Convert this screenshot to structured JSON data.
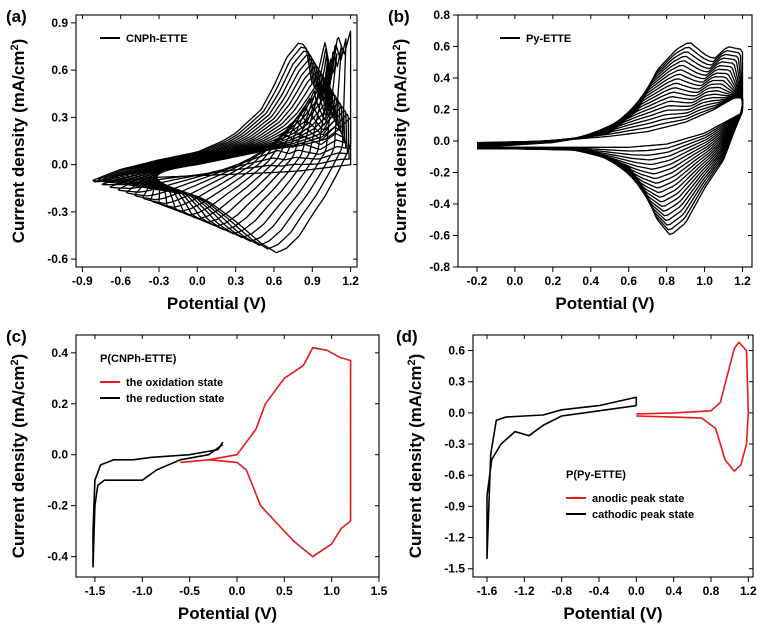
{
  "chart_data": [
    {
      "panel": "(a)",
      "type": "line",
      "xlabel": "Potential (V)",
      "ylabel": "Current density (mA/cm",
      "ylabel_sup": "2",
      "ylabel_end": ")",
      "xlim": [
        -0.95,
        1.25
      ],
      "ylim": [
        -0.65,
        0.95
      ],
      "xticks": [
        -0.9,
        -0.6,
        -0.3,
        0.0,
        0.3,
        0.6,
        0.9,
        1.2
      ],
      "yticks": [
        -0.6,
        -0.3,
        0.0,
        0.3,
        0.6,
        0.9
      ],
      "xtick_labels": [
        "-0.9",
        "-0.6",
        "-0.3",
        "0.0",
        "0.3",
        "0.6",
        "0.9",
        "1.2"
      ],
      "ytick_labels": [
        "-0.6",
        "-0.3",
        "0.0",
        "0.3",
        "0.6",
        "0.9"
      ],
      "legend": [
        {
          "name": "CNPh-ETTE",
          "color": "#000000"
        }
      ],
      "legend_position": "top-left",
      "cycles": 20,
      "series": [
        {
          "name": "CNPh-ETTE",
          "color": "#000000",
          "cycle": "first",
          "x": [
            0.0,
            0.3,
            0.6,
            0.8,
            1.0,
            1.1,
            1.2,
            1.2,
            1.0,
            0.8,
            0.6,
            0.3,
            0.0,
            -0.3,
            -0.6,
            -0.82,
            -0.6,
            -0.3,
            0.0
          ],
          "y": [
            0.0,
            0.05,
            0.1,
            0.12,
            0.16,
            0.22,
            0.3,
            0.0,
            -0.02,
            -0.04,
            -0.05,
            -0.06,
            -0.07,
            -0.08,
            -0.1,
            -0.11,
            -0.07,
            -0.03,
            0.0
          ]
        },
        {
          "name": "CNPh-ETTE",
          "color": "#000000",
          "cycle": "last",
          "x": [
            -0.82,
            -0.6,
            -0.3,
            0.0,
            0.2,
            0.3,
            0.5,
            0.6,
            0.7,
            0.8,
            0.85,
            0.9,
            0.95,
            1.0,
            1.05,
            1.1,
            1.15,
            1.2,
            1.2,
            1.1,
            1.0,
            0.9,
            0.8,
            0.7,
            0.62,
            0.5,
            0.3,
            0.2,
            0.1,
            0.0,
            -0.3,
            -0.6,
            -0.82
          ],
          "y": [
            -0.1,
            -0.03,
            0.03,
            0.08,
            0.15,
            0.2,
            0.35,
            0.5,
            0.68,
            0.78,
            0.75,
            0.5,
            0.6,
            0.78,
            0.55,
            0.82,
            0.7,
            0.85,
            0.12,
            -0.05,
            -0.2,
            -0.32,
            -0.45,
            -0.53,
            -0.56,
            -0.5,
            -0.36,
            -0.3,
            -0.24,
            -0.2,
            -0.16,
            -0.12,
            -0.1
          ]
        }
      ]
    },
    {
      "panel": "(b)",
      "type": "line",
      "xlabel": "Potential (V)",
      "ylabel": "Current density (mA/cm",
      "ylabel_sup": "2",
      "ylabel_end": ")",
      "xlim": [
        -0.3,
        1.25
      ],
      "ylim": [
        -0.8,
        0.8
      ],
      "xticks": [
        -0.2,
        0.0,
        0.2,
        0.4,
        0.6,
        0.8,
        1.0,
        1.2
      ],
      "yticks": [
        -0.8,
        -0.6,
        -0.4,
        -0.2,
        0.0,
        0.2,
        0.4,
        0.6,
        0.8
      ],
      "xtick_labels": [
        "-0.2",
        "0.0",
        "0.2",
        "0.4",
        "0.6",
        "0.8",
        "1.0",
        "1.2"
      ],
      "ytick_labels": [
        "-0.8",
        "-0.6",
        "-0.4",
        "-0.2",
        "0.0",
        "0.2",
        "0.4",
        "0.6",
        "0.8"
      ],
      "legend": [
        {
          "name": "Py-ETTE",
          "color": "#000000"
        }
      ],
      "legend_position": "top-left",
      "cycles": 20,
      "series": [
        {
          "name": "Py-ETTE",
          "color": "#000000",
          "cycle": "first",
          "x": [
            -0.2,
            0.2,
            0.5,
            0.7,
            0.9,
            1.05,
            1.15,
            1.2,
            1.2,
            1.0,
            0.8,
            0.6,
            0.4,
            0.0,
            -0.2
          ],
          "y": [
            -0.01,
            0.0,
            0.03,
            0.06,
            0.12,
            0.2,
            0.27,
            0.28,
            0.18,
            0.05,
            -0.02,
            -0.04,
            -0.04,
            -0.04,
            -0.04
          ]
        },
        {
          "name": "Py-ETTE",
          "color": "#000000",
          "cycle": "last",
          "x": [
            -0.2,
            0.2,
            0.5,
            0.65,
            0.75,
            0.85,
            0.92,
            1.0,
            1.05,
            1.12,
            1.2,
            1.2,
            1.1,
            1.0,
            0.9,
            0.82,
            0.75,
            0.68,
            0.6,
            0.4,
            0.0,
            -0.2
          ],
          "y": [
            -0.04,
            -0.01,
            0.05,
            0.2,
            0.45,
            0.58,
            0.63,
            0.55,
            0.52,
            0.6,
            0.58,
            0.2,
            -0.12,
            -0.3,
            -0.52,
            -0.6,
            -0.5,
            -0.3,
            -0.16,
            -0.06,
            -0.05,
            -0.05
          ]
        }
      ]
    },
    {
      "panel": "(c)",
      "type": "line",
      "title": "P(CNPh-ETTE)",
      "xlabel": "Potential (V)",
      "ylabel": "Current density (mA/cm",
      "ylabel_sup": "2",
      "ylabel_end": ")",
      "xlim": [
        -1.7,
        1.5
      ],
      "ylim": [
        -0.48,
        0.47
      ],
      "xticks": [
        -1.5,
        -1.0,
        -0.5,
        0.0,
        0.5,
        1.0,
        1.5
      ],
      "yticks": [
        -0.4,
        -0.2,
        0.0,
        0.2,
        0.4
      ],
      "xtick_labels": [
        "-1.5",
        "-1.0",
        "-0.5",
        "0.0",
        "0.5",
        "1.0",
        "1.5"
      ],
      "ytick_labels": [
        "-0.4",
        "-0.2",
        "0.0",
        "0.2",
        "0.4"
      ],
      "legend": [
        {
          "name": "the oxidation state",
          "color": "#e41a1c"
        },
        {
          "name": "the reduction state",
          "color": "#000000"
        }
      ],
      "legend_position": "top-left",
      "series": [
        {
          "name": "the oxidation state",
          "color": "#e41a1c",
          "x": [
            -0.6,
            -0.3,
            0.0,
            0.2,
            0.3,
            0.5,
            0.7,
            0.8,
            0.95,
            1.1,
            1.2,
            1.2,
            1.1,
            1.0,
            0.8,
            0.6,
            0.4,
            0.25,
            0.1,
            0.0,
            -0.3,
            -0.6
          ],
          "y": [
            -0.03,
            -0.02,
            0.0,
            0.1,
            0.2,
            0.3,
            0.35,
            0.42,
            0.41,
            0.38,
            0.37,
            -0.26,
            -0.29,
            -0.35,
            -0.4,
            -0.34,
            -0.26,
            -0.2,
            -0.06,
            -0.03,
            -0.02,
            -0.03
          ]
        },
        {
          "name": "the reduction state",
          "color": "#000000",
          "x": [
            -0.15,
            -0.2,
            -0.5,
            -0.9,
            -1.1,
            -1.3,
            -1.44,
            -1.5,
            -1.52,
            -1.52,
            -1.5,
            -1.47,
            -1.4,
            -1.2,
            -1.0,
            -0.85,
            -0.6,
            -0.3,
            -0.15
          ],
          "y": [
            0.05,
            0.02,
            0.0,
            -0.01,
            -0.02,
            -0.02,
            -0.04,
            -0.1,
            -0.3,
            -0.44,
            -0.2,
            -0.12,
            -0.1,
            -0.1,
            -0.1,
            -0.06,
            -0.02,
            0.0,
            0.04
          ]
        }
      ]
    },
    {
      "panel": "(d)",
      "type": "line",
      "title": "P(Py-ETTE)",
      "xlabel": "Potential (V)",
      "ylabel": "Current density (mA/cm",
      "ylabel_sup": "2",
      "ylabel_end": ")",
      "xlim": [
        -1.75,
        1.25
      ],
      "ylim": [
        -1.58,
        0.75
      ],
      "xticks": [
        -1.6,
        -1.2,
        -0.8,
        -0.4,
        0.0,
        0.4,
        0.8,
        1.2
      ],
      "yticks": [
        -1.5,
        -1.2,
        -0.9,
        -0.6,
        -0.3,
        0.0,
        0.3,
        0.6
      ],
      "xtick_labels": [
        "-1.6",
        "-1.2",
        "-0.8",
        "-0.4",
        "0.0",
        "0.4",
        "0.8",
        "1.2"
      ],
      "ytick_labels": [
        "-1.5",
        "-1.2",
        "-0.9",
        "-0.6",
        "-0.3",
        "0.0",
        "0.3",
        "0.6"
      ],
      "legend": [
        {
          "name": "anodic peak state",
          "color": "#e41a1c"
        },
        {
          "name": "cathodic peak state",
          "color": "#000000"
        }
      ],
      "legend_position": "bottom-right",
      "series": [
        {
          "name": "anodic peak state",
          "color": "#e41a1c",
          "x": [
            0.0,
            0.4,
            0.8,
            0.9,
            1.0,
            1.05,
            1.1,
            1.18,
            1.2,
            1.18,
            1.12,
            1.05,
            0.95,
            0.85,
            0.7,
            0.4,
            0.0
          ],
          "y": [
            -0.01,
            0.0,
            0.02,
            0.1,
            0.45,
            0.62,
            0.68,
            0.6,
            0.0,
            -0.3,
            -0.5,
            -0.56,
            -0.45,
            -0.15,
            -0.05,
            -0.04,
            -0.03
          ]
        },
        {
          "name": "cathodic peak state",
          "color": "#000000",
          "x": [
            0.0,
            0.0,
            -0.4,
            -0.8,
            -1.0,
            -1.2,
            -1.4,
            -1.5,
            -1.56,
            -1.6,
            -1.6,
            -1.55,
            -1.45,
            -1.3,
            -1.15,
            -1.0,
            -0.8,
            -0.4,
            0.0
          ],
          "y": [
            0.07,
            0.15,
            0.07,
            0.03,
            -0.02,
            -0.03,
            -0.04,
            -0.07,
            -0.4,
            -1.4,
            -0.8,
            -0.45,
            -0.3,
            -0.18,
            -0.22,
            -0.12,
            -0.03,
            0.02,
            0.07
          ]
        }
      ]
    }
  ]
}
